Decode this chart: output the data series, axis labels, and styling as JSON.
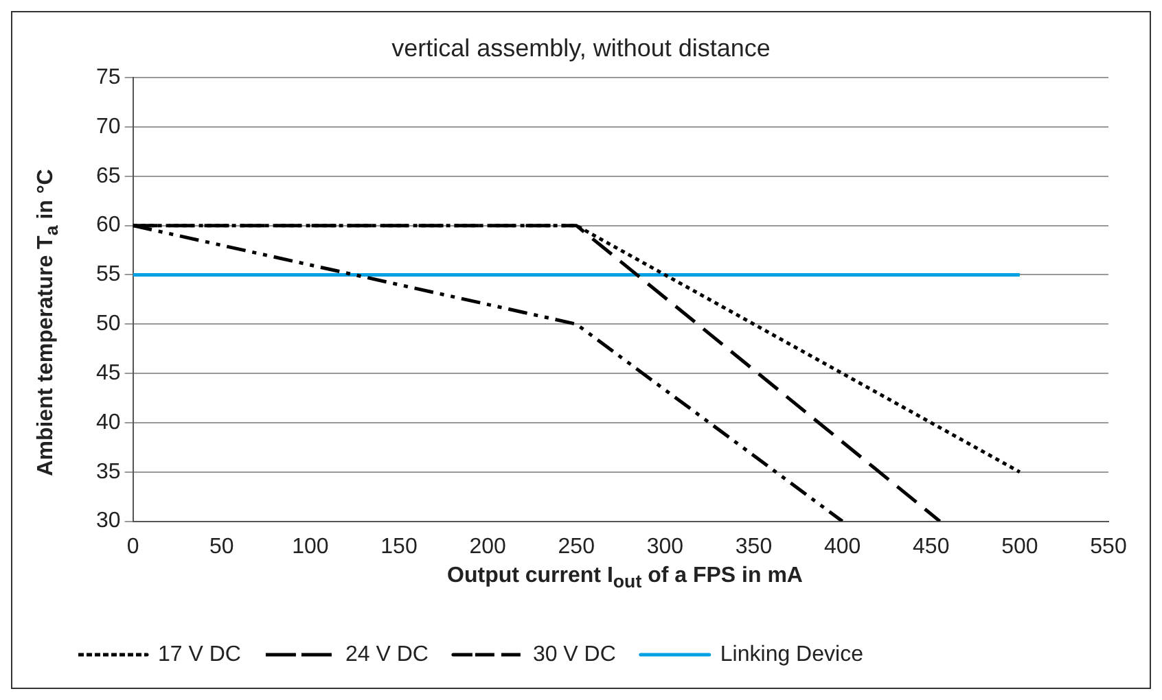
{
  "chart_data": {
    "type": "line",
    "title": "vertical assembly, without distance",
    "xlabel": "Output current I$_{out}$ of a FPS in mA",
    "ylabel": "Ambient temperature T$_{a}$ in °C",
    "series": [
      {
        "name": "17 V DC",
        "color": "#000000",
        "x": [
          0,
          250,
          500
        ],
        "values": [
          60,
          60,
          35
        ],
        "line_style": "dotted"
      },
      {
        "name": "24 V DC",
        "color": "#000000",
        "x": [
          0,
          250,
          455
        ],
        "values": [
          60,
          60,
          30
        ],
        "line_style": "dashed"
      },
      {
        "name": "30 V DC",
        "color": "#000000",
        "x": [
          0,
          250,
          400
        ],
        "values": [
          60,
          50,
          30
        ],
        "line_style": "dashdotdot"
      },
      {
        "name": "Linking Device",
        "color": "#00a0e3",
        "x": [
          0,
          500
        ],
        "values": [
          55,
          55
        ],
        "line_style": "solid"
      }
    ],
    "xlim": [
      0,
      550
    ],
    "xticks": [
      0,
      50,
      100,
      150,
      200,
      250,
      300,
      350,
      400,
      450,
      500,
      550
    ],
    "ylim": [
      30,
      75
    ],
    "yticks": [
      30,
      35,
      40,
      45,
      50,
      55,
      60,
      65,
      70,
      75
    ],
    "grid": "y",
    "legend": "bottom",
    "marker": "none"
  }
}
